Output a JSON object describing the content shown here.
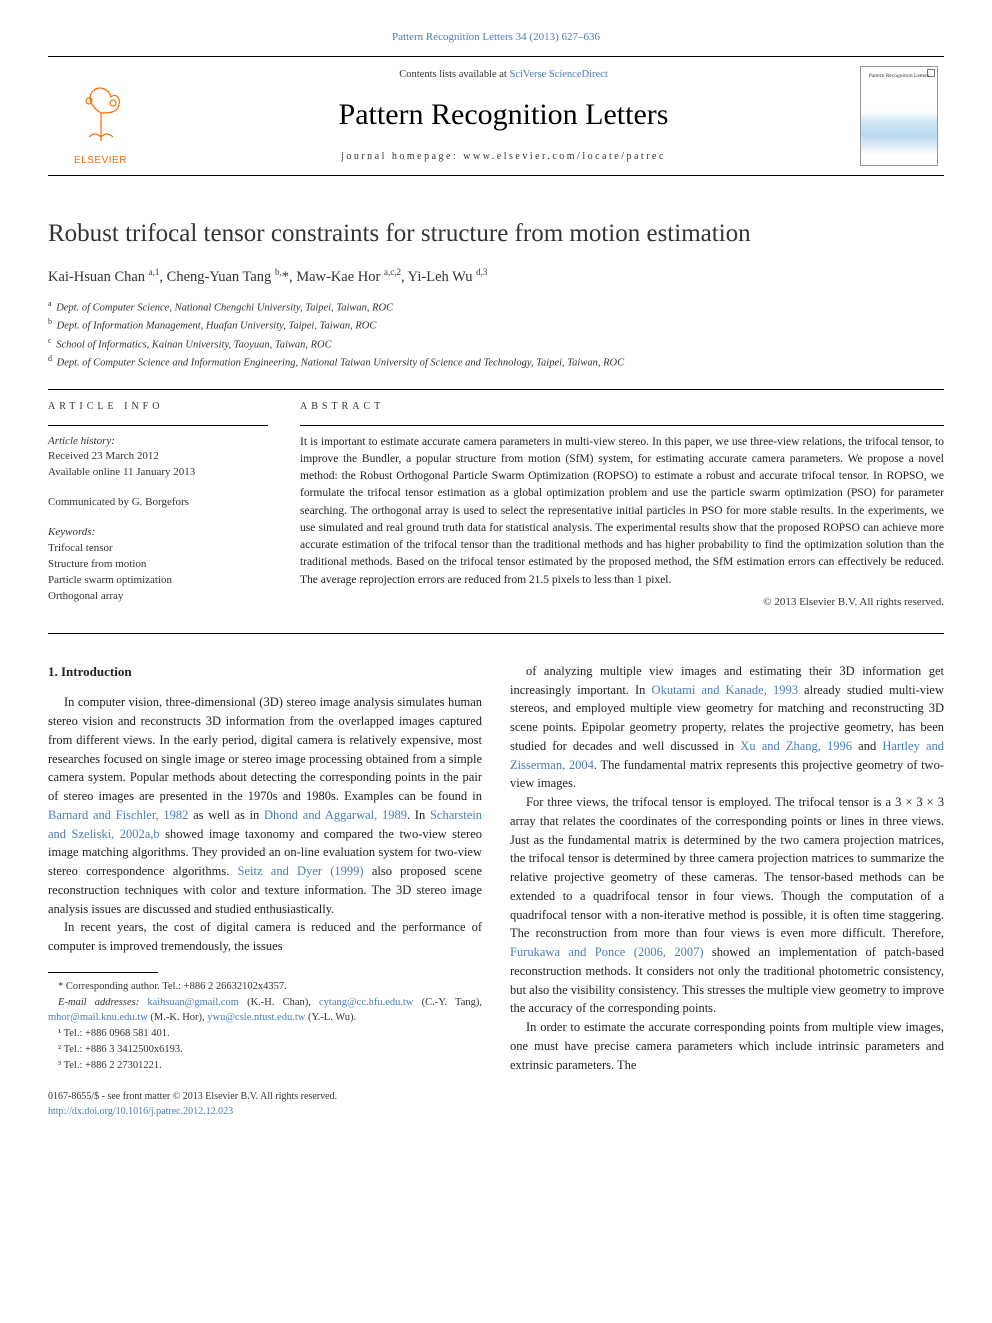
{
  "colors": {
    "link": "#4a7db8",
    "text": "#222222",
    "elsevier_orange": "#ff6a00",
    "border": "#000000",
    "background": "#ffffff"
  },
  "header": {
    "journal_ref_prefix": "Pattern Recognition Letters 34 (2013) 627–636",
    "contents_line_prefix": "Contents lists available at ",
    "contents_link": "SciVerse ScienceDirect",
    "journal_title": "Pattern Recognition Letters",
    "homepage_line": "journal homepage: www.elsevier.com/locate/patrec",
    "elsevier_label": "ELSEVIER",
    "cover_tiny": "Pattern Recognition Letters"
  },
  "article": {
    "title": "Robust trifocal tensor constraints for structure from motion estimation",
    "authors_html": "Kai-Hsuan Chan <sup>a,1</sup>, Cheng-Yuan Tang <sup>b,</sup>*, Maw-Kae Hor <sup>a,c,2</sup>, Yi-Leh Wu <sup>d,3</sup>",
    "affiliations": [
      {
        "sup": "a",
        "text": "Dept. of Computer Science, National Chengchi University, Taipei, Taiwan, ROC"
      },
      {
        "sup": "b",
        "text": "Dept. of Information Management, Huafan University, Taipei, Taiwan, ROC"
      },
      {
        "sup": "c",
        "text": "School of Informatics, Kainan University, Taoyuan, Taiwan, ROC"
      },
      {
        "sup": "d",
        "text": "Dept. of Computer Science and Information Engineering, National Taiwan University of Science and Technology, Taipei, Taiwan, ROC"
      }
    ]
  },
  "info": {
    "label": "ARTICLE INFO",
    "history_label": "Article history:",
    "received": "Received 23 March 2012",
    "online": "Available online 11 January 2013",
    "communicated": "Communicated by G. Borgefors",
    "keywords_label": "Keywords:",
    "keywords": [
      "Trifocal tensor",
      "Structure from motion",
      "Particle swarm optimization",
      "Orthogonal array"
    ]
  },
  "abstract": {
    "label": "ABSTRACT",
    "text": "It is important to estimate accurate camera parameters in multi-view stereo. In this paper, we use three-view relations, the trifocal tensor, to improve the Bundler, a popular structure from motion (SfM) system, for estimating accurate camera parameters. We propose a novel method: the Robust Orthogonal Particle Swarm Optimization (ROPSO) to estimate a robust and accurate trifocal tensor. In ROPSO, we formulate the trifocal tensor estimation as a global optimization problem and use the particle swarm optimization (PSO) for parameter searching. The orthogonal array is used to select the representative initial particles in PSO for more stable results. In the experiments, we use simulated and real ground truth data for statistical analysis. The experimental results show that the proposed ROPSO can achieve more accurate estimation of the trifocal tensor than the traditional methods and has higher probability to find the optimization solution than the traditional methods. Based on the trifocal tensor estimated by the proposed method, the SfM estimation errors can effectively be reduced. The average reprojection errors are reduced from 21.5 pixels to less than 1 pixel.",
    "copyright": "© 2013 Elsevier B.V. All rights reserved."
  },
  "body": {
    "heading1": "1. Introduction",
    "left_paras": [
      "In computer vision, three-dimensional (3D) stereo image analysis simulates human stereo vision and reconstructs 3D information from the overlapped images captured from different views. In the early period, digital camera is relatively expensive, most researches focused on single image or stereo image processing obtained from a simple camera system. Popular methods about detecting the corresponding points in the pair of stereo images are presented in the 1970s and 1980s. Examples can be found in <a class=\"ref-link\" data-name=\"citation-link\" data-interactable=\"true\">Barnard and Fischler, 1982</a> as well as in <a class=\"ref-link\" data-name=\"citation-link\" data-interactable=\"true\">Dhond and Aggarwal, 1989</a>. In <a class=\"ref-link\" data-name=\"citation-link\" data-interactable=\"true\">Scharstein and Szeliski, 2002a,b</a> showed image taxonomy and compared the two-view stereo image matching algorithms. They provided an on-line evaluation system for two-view stereo correspondence algorithms. <a class=\"ref-link\" data-name=\"citation-link\" data-interactable=\"true\">Seitz and Dyer (1999)</a> also proposed scene reconstruction techniques with color and texture information. The 3D stereo image analysis issues are discussed and studied enthusiastically.",
      "In recent years, the cost of digital camera is reduced and the performance of computer is improved tremendously, the issues"
    ],
    "right_paras": [
      "of analyzing multiple view images and estimating their 3D information get increasingly important. In <a class=\"ref-link\" data-name=\"citation-link\" data-interactable=\"true\">Okutami and Kanade, 1993</a> already studied multi-view stereos, and employed multiple view geometry for matching and reconstructing 3D scene points. Epipolar geometry property, relates the projective geometry, has been studied for decades and well discussed in <a class=\"ref-link\" data-name=\"citation-link\" data-interactable=\"true\">Xu and Zhang, 1996</a> and <a class=\"ref-link\" data-name=\"citation-link\" data-interactable=\"true\">Hartley and Zisserman, 2004</a>. The fundamental matrix represents this projective geometry of two-view images.",
      "For three views, the trifocal tensor is employed. The trifocal tensor is a 3 × 3 × 3 array that relates the coordinates of the corresponding points or lines in three views. Just as the fundamental matrix is determined by the two camera projection matrices, the trifocal tensor is determined by three camera projection matrices to summarize the relative projective geometry of these cameras. The tensor-based methods can be extended to a quadrifocal tensor in four views. Though the computation of a quadrifocal tensor with a non-iterative method is possible, it is often time staggering. The reconstruction from more than four views is even more difficult. Therefore, <a class=\"ref-link\" data-name=\"citation-link\" data-interactable=\"true\">Furukawa and Ponce (2006, 2007)</a> showed an implementation of patch-based reconstruction methods. It considers not only the traditional photometric consistency, but also the visibility consistency. This stresses the multiple view geometry to improve the accuracy of the corresponding points.",
      "In order to estimate the accurate corresponding points from multiple view images, one must have precise camera parameters which include intrinsic parameters and extrinsic parameters. The"
    ]
  },
  "footnotes": {
    "corresponding": "* Corresponding author. Tel.: +886 2 26632102x4357.",
    "emails_label": "E-mail addresses:",
    "emails": " kaihsuan@gmail.com (K.-H. Chan), cytang@cc.hfu.edu.tw (C.-Y. Tang), mhor@mail.knu.edu.tw (M.-K. Hor), ywu@csie.ntust.edu.tw (Y.-L. Wu).",
    "tel1": "¹ Tel.: +886 0968 581 401.",
    "tel2": "² Tel.: +886 3 3412500x6193.",
    "tel3": "³ Tel.: +886 2 27301221."
  },
  "doi": {
    "line1": "0167-8655/$ - see front matter © 2013 Elsevier B.V. All rights reserved.",
    "link": "http://dx.doi.org/10.1016/j.patrec.2012.12.023"
  }
}
